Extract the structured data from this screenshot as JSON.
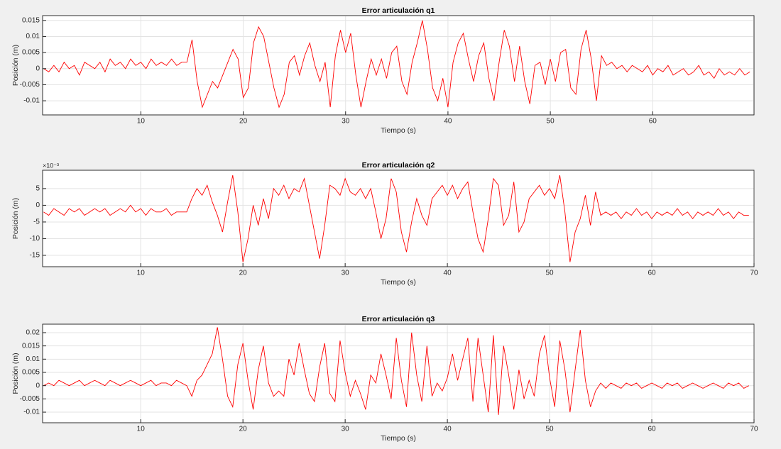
{
  "chart_data": [
    {
      "type": "line",
      "title": "Error articulación q1",
      "x_label": "Tiempo (s)",
      "y_label": "Posición (m)",
      "color": "#ff0000",
      "grid": true,
      "xlim": [
        0.4,
        69.9
      ],
      "xticks": [
        10,
        20,
        30,
        40,
        50,
        60
      ],
      "ylim": [
        -0.0144,
        0.0165
      ],
      "yticks": [
        -0.01,
        -0.005,
        0,
        0.005,
        0.01,
        0.015
      ],
      "x": [
        0.5,
        1,
        1.5,
        2,
        2.5,
        3,
        3.5,
        4,
        4.5,
        5,
        5.5,
        6,
        6.5,
        7,
        7.5,
        8,
        8.5,
        9,
        9.5,
        10,
        10.5,
        11,
        11.5,
        12,
        12.5,
        13,
        13.5,
        14,
        14.5,
        15,
        15.5,
        16,
        16.5,
        17,
        17.5,
        18,
        18.5,
        19,
        19.5,
        20,
        20.5,
        21,
        21.5,
        22,
        22.5,
        23,
        23.5,
        24,
        24.5,
        25,
        25.5,
        26,
        26.5,
        27,
        27.5,
        28,
        28.5,
        29,
        29.5,
        30,
        30.5,
        31,
        31.5,
        32,
        32.5,
        33,
        33.5,
        34,
        34.5,
        35,
        35.5,
        36,
        36.5,
        37,
        37.5,
        38,
        38.5,
        39,
        39.5,
        40,
        40.5,
        41,
        41.5,
        42,
        42.5,
        43,
        43.5,
        44,
        44.5,
        45,
        45.5,
        46,
        46.5,
        47,
        47.5,
        48,
        48.5,
        49,
        49.5,
        50,
        50.5,
        51,
        51.5,
        52,
        52.5,
        53,
        53.5,
        54,
        54.5,
        55,
        55.5,
        56,
        56.5,
        57,
        57.5,
        58,
        58.5,
        59,
        59.5,
        60,
        60.5,
        61,
        61.5,
        62,
        62.5,
        63,
        63.5,
        64,
        64.5,
        65,
        65.5,
        66,
        66.5,
        67,
        67.5,
        68,
        68.5,
        69,
        69.5
      ],
      "values": [
        0,
        -0.001,
        0.001,
        -0.001,
        0.002,
        0,
        0.001,
        -0.002,
        0.002,
        0.001,
        0,
        0.002,
        -0.001,
        0.003,
        0.001,
        0.002,
        0,
        0.003,
        0.001,
        0.002,
        0,
        0.003,
        0.001,
        0.002,
        0.001,
        0.003,
        0.001,
        0.002,
        0.002,
        0.009,
        -0.004,
        -0.012,
        -0.008,
        -0.004,
        -0.006,
        -0.002,
        0.002,
        0.006,
        0.003,
        -0.009,
        -0.006,
        0.008,
        0.013,
        0.01,
        0.002,
        -0.006,
        -0.012,
        -0.008,
        0.002,
        0.004,
        -0.002,
        0.004,
        0.008,
        0.001,
        -0.004,
        0.002,
        -0.012,
        0.004,
        0.012,
        0.005,
        0.011,
        -0.002,
        -0.012,
        -0.004,
        0.003,
        -0.002,
        0.003,
        -0.003,
        0.005,
        0.007,
        -0.004,
        -0.008,
        0.002,
        0.008,
        0.015,
        0.006,
        -0.006,
        -0.01,
        -0.003,
        -0.012,
        0.002,
        0.008,
        0.011,
        0.003,
        -0.004,
        0.004,
        0.008,
        -0.003,
        -0.01,
        0.002,
        0.012,
        0.007,
        -0.004,
        0.007,
        -0.004,
        -0.011,
        0.001,
        0.002,
        -0.005,
        0.003,
        -0.004,
        0.005,
        0.006,
        -0.006,
        -0.008,
        0.006,
        0.012,
        0.003,
        -0.01,
        0.004,
        0.001,
        0.002,
        0,
        0.001,
        -0.001,
        0.001,
        0,
        -0.001,
        0.001,
        -0.002,
        0,
        -0.001,
        0.001,
        -0.002,
        -0.001,
        0,
        -0.002,
        -0.001,
        0.001,
        -0.002,
        -0.001,
        -0.003,
        0,
        -0.002,
        -0.001,
        -0.002,
        0,
        -0.002,
        -0.001
      ]
    },
    {
      "type": "line",
      "title": "Error articulación q2",
      "x_label": "Tiempo (s)",
      "y_label": "Posición (m)",
      "y_exponent": "×10⁻³",
      "color": "#ff0000",
      "grid": true,
      "xlim": [
        0.4,
        70
      ],
      "xticks": [
        10,
        20,
        30,
        40,
        50,
        60,
        70
      ],
      "ylim": [
        -18.4,
        10.5
      ],
      "yticks": [
        -15,
        -10,
        -5,
        0,
        5
      ],
      "x": [
        0.5,
        1,
        1.5,
        2,
        2.5,
        3,
        3.5,
        4,
        4.5,
        5,
        5.5,
        6,
        6.5,
        7,
        7.5,
        8,
        8.5,
        9,
        9.5,
        10,
        10.5,
        11,
        11.5,
        12,
        12.5,
        13,
        13.5,
        14,
        14.5,
        15,
        15.5,
        16,
        16.5,
        17,
        17.5,
        18,
        18.5,
        19,
        19.5,
        20,
        20.5,
        21,
        21.5,
        22,
        22.5,
        23,
        23.5,
        24,
        24.5,
        25,
        25.5,
        26,
        26.5,
        27,
        27.5,
        28,
        28.5,
        29,
        29.5,
        30,
        30.5,
        31,
        31.5,
        32,
        32.5,
        33,
        33.5,
        34,
        34.5,
        35,
        35.5,
        36,
        36.5,
        37,
        37.5,
        38,
        38.5,
        39,
        39.5,
        40,
        40.5,
        41,
        41.5,
        42,
        42.5,
        43,
        43.5,
        44,
        44.5,
        45,
        45.5,
        46,
        46.5,
        47,
        47.5,
        48,
        48.5,
        49,
        49.5,
        50,
        50.5,
        51,
        51.5,
        52,
        52.5,
        53,
        53.5,
        54,
        54.5,
        55,
        55.5,
        56,
        56.5,
        57,
        57.5,
        58,
        58.5,
        59,
        59.5,
        60,
        60.5,
        61,
        61.5,
        62,
        62.5,
        63,
        63.5,
        64,
        64.5,
        65,
        65.5,
        66,
        66.5,
        67,
        67.5,
        68,
        68.5,
        69,
        69.5
      ],
      "values": [
        -2,
        -3,
        -1,
        -2,
        -3,
        -1,
        -2,
        -1,
        -3,
        -2,
        -1,
        -2,
        -1,
        -3,
        -2,
        -1,
        -2,
        0,
        -2,
        -1,
        -3,
        -1,
        -2,
        -2,
        -1,
        -3,
        -2,
        -2,
        -2,
        2,
        5,
        3,
        6,
        1,
        -3,
        -8,
        1,
        9,
        -2,
        -17,
        -10,
        0,
        -6,
        2,
        -4,
        5,
        3,
        6,
        2,
        5,
        4,
        8,
        0,
        -8,
        -16,
        -6,
        6,
        5,
        3,
        8,
        4,
        3,
        5,
        2,
        5,
        -2,
        -10,
        -4,
        8,
        4,
        -8,
        -14,
        -5,
        2,
        -3,
        -6,
        2,
        4,
        6,
        3,
        6,
        2,
        5,
        7,
        -2,
        -10,
        -14,
        -4,
        8,
        6,
        -6,
        -3,
        7,
        -8,
        -5,
        2,
        4,
        6,
        3,
        5,
        2,
        9,
        -2,
        -17,
        -8,
        -4,
        3,
        -6,
        4,
        -3,
        -2,
        -3,
        -2,
        -4,
        -2,
        -3,
        -1,
        -3,
        -2,
        -4,
        -2,
        -3,
        -2,
        -3,
        -1,
        -3,
        -2,
        -4,
        -2,
        -3,
        -2,
        -3,
        -1,
        -3,
        -2,
        -4,
        -2,
        -3,
        -3
      ]
    },
    {
      "type": "line",
      "title": "Error articulación q3",
      "x_label": "Tiempo (s)",
      "y_label": "Posición (m)",
      "color": "#ff0000",
      "grid": true,
      "xlim": [
        0.4,
        70
      ],
      "xticks": [
        10,
        20,
        30,
        40,
        50,
        60,
        70
      ],
      "ylim": [
        -0.014,
        0.0232
      ],
      "yticks": [
        -0.01,
        -0.005,
        0,
        0.005,
        0.01,
        0.015,
        0.02
      ],
      "x": [
        0.5,
        1,
        1.5,
        2,
        2.5,
        3,
        3.5,
        4,
        4.5,
        5,
        5.5,
        6,
        6.5,
        7,
        7.5,
        8,
        8.5,
        9,
        9.5,
        10,
        10.5,
        11,
        11.5,
        12,
        12.5,
        13,
        13.5,
        14,
        14.5,
        15,
        15.5,
        16,
        16.5,
        17,
        17.5,
        18,
        18.5,
        19,
        19.5,
        20,
        20.5,
        21,
        21.5,
        22,
        22.5,
        23,
        23.5,
        24,
        24.5,
        25,
        25.5,
        26,
        26.5,
        27,
        27.5,
        28,
        28.5,
        29,
        29.5,
        30,
        30.5,
        31,
        31.5,
        32,
        32.5,
        33,
        33.5,
        34,
        34.5,
        35,
        35.5,
        36,
        36.5,
        37,
        37.5,
        38,
        38.5,
        39,
        39.5,
        40,
        40.5,
        41,
        41.5,
        42,
        42.5,
        43,
        43.5,
        44,
        44.5,
        45,
        45.5,
        46,
        46.5,
        47,
        47.5,
        48,
        48.5,
        49,
        49.5,
        50,
        50.5,
        51,
        51.5,
        52,
        52.5,
        53,
        53.5,
        54,
        54.5,
        55,
        55.5,
        56,
        56.5,
        57,
        57.5,
        58,
        58.5,
        59,
        59.5,
        60,
        60.5,
        61,
        61.5,
        62,
        62.5,
        63,
        63.5,
        64,
        64.5,
        65,
        65.5,
        66,
        66.5,
        67,
        67.5,
        68,
        68.5,
        69,
        69.5
      ],
      "values": [
        0,
        0.001,
        0,
        0.002,
        0.001,
        0,
        0.001,
        0.002,
        0,
        0.001,
        0.002,
        0.001,
        0,
        0.002,
        0.001,
        0,
        0.001,
        0.002,
        0.001,
        0,
        0.001,
        0.002,
        0,
        0.001,
        0.001,
        0,
        0.002,
        0.001,
        0,
        -0.004,
        0.002,
        0.004,
        0.008,
        0.012,
        0.022,
        0.01,
        -0.004,
        -0.008,
        0.008,
        0.016,
        0.002,
        -0.009,
        0.006,
        0.015,
        0.001,
        -0.004,
        -0.002,
        -0.004,
        0.01,
        0.004,
        0.016,
        0.006,
        -0.003,
        -0.006,
        0.007,
        0.016,
        -0.003,
        -0.006,
        0.017,
        0.005,
        -0.004,
        0.002,
        -0.003,
        -0.009,
        0.004,
        0.001,
        0.012,
        0.004,
        -0.005,
        0.018,
        0.002,
        -0.008,
        0.02,
        0.004,
        -0.006,
        0.015,
        -0.004,
        0.001,
        -0.002,
        0.003,
        0.012,
        0.002,
        0.01,
        0.018,
        -0.006,
        0.018,
        0.004,
        -0.01,
        0.019,
        -0.011,
        0.015,
        0.004,
        -0.009,
        0.006,
        -0.005,
        0.002,
        -0.004,
        0.012,
        0.019,
        0.003,
        -0.008,
        0.017,
        0.006,
        -0.01,
        0.006,
        0.021,
        0.002,
        -0.008,
        -0.002,
        0.001,
        -0.001,
        0.001,
        0,
        -0.001,
        0.001,
        0,
        0.001,
        -0.001,
        0,
        0.001,
        0,
        -0.001,
        0.001,
        0,
        0.001,
        -0.001,
        0,
        0.001,
        0,
        -0.001,
        0,
        0.001,
        0,
        -0.001,
        0.001,
        0,
        0.001,
        -0.001,
        0
      ]
    }
  ]
}
